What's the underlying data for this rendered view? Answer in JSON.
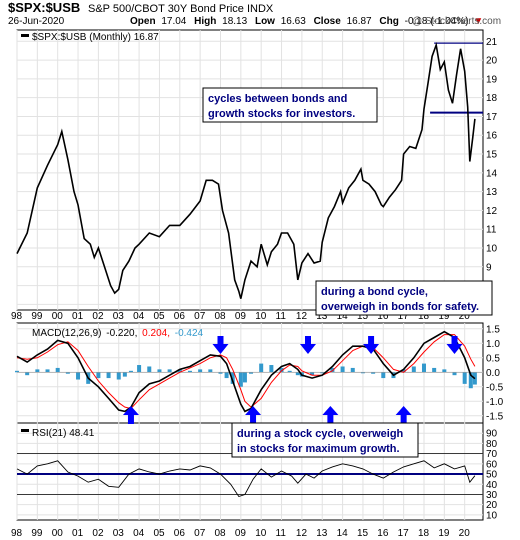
{
  "header": {
    "symbol": "$SPX:$USB",
    "description": "S&P 500/CBOT 30Y Bond Price INDX",
    "date": "26-Jun-2020",
    "open_label": "Open",
    "open": "17.04",
    "high_label": "High",
    "high": "18.13",
    "low_label": "Low",
    "low": "16.63",
    "close_label": "Close",
    "close": "16.87",
    "chg_label": "Chg",
    "chg": "-0.18 (-1.04%)",
    "chg_arrow": "▼",
    "watermark": "@ StockCharts.com"
  },
  "main_legend": "$SPX:$USB (Monthly) 16.87",
  "macd_legend": {
    "label": "MACD(12,26,9)",
    "macd": "-0.220,",
    "signal": "0.204,",
    "hist": "-0.424"
  },
  "rsi_legend": "RSI(21) 48.41",
  "annotations": [
    {
      "lines": [
        "cycles between bonds and",
        "growth stocks for investors."
      ]
    },
    {
      "lines": [
        "during a bond cycle,",
        "overweigh in bonds for safety."
      ]
    },
    {
      "lines": [
        "during a stock cycle, overweigh",
        "in stocks for maximum growth."
      ]
    }
  ],
  "x_tick_labels": [
    "98",
    "99",
    "00",
    "01",
    "02",
    "03",
    "04",
    "05",
    "06",
    "07",
    "08",
    "09",
    "10",
    "11",
    "12",
    "13",
    "14",
    "15",
    "16",
    "17",
    "18",
    "19",
    "20"
  ],
  "colors": {
    "price": "#000000",
    "macd": "#000000",
    "signal": "#ff0000",
    "histogram": "#3399cc",
    "arrow": "#0000ff",
    "level_line": "#000080",
    "annotation_text": "#000080",
    "down": "#cc0000",
    "signal_value": "#ff0000",
    "hist_value": "#3399cc"
  },
  "chart_data": [
    {
      "type": "line",
      "name": "price",
      "title": "$SPX:$USB (Monthly) 16.87",
      "ylim": [
        6.7,
        21.6
      ],
      "y_ticks": [
        7,
        8,
        9,
        10,
        11,
        12,
        13,
        14,
        15,
        16,
        17,
        18,
        19,
        20,
        21
      ],
      "x": [
        1998.0,
        1998.5,
        1999.0,
        1999.5,
        2000.0,
        2000.2,
        2000.5,
        2000.8,
        2001.0,
        2001.3,
        2001.6,
        2001.8,
        2002.0,
        2002.3,
        2002.6,
        2002.8,
        2003.0,
        2003.2,
        2003.5,
        2003.8,
        2004.0,
        2004.5,
        2005.0,
        2005.5,
        2006.0,
        2006.5,
        2007.0,
        2007.3,
        2007.6,
        2007.9,
        2008.1,
        2008.4,
        2008.7,
        2008.9,
        2009.0,
        2009.2,
        2009.5,
        2009.8,
        2010.0,
        2010.3,
        2010.5,
        2010.8,
        2011.0,
        2011.3,
        2011.6,
        2011.8,
        2012.0,
        2012.3,
        2012.6,
        2012.9,
        2013.0,
        2013.3,
        2013.6,
        2013.9,
        2014.0,
        2014.3,
        2014.6,
        2014.9,
        2015.0,
        2015.3,
        2015.6,
        2015.9,
        2016.0,
        2016.3,
        2016.6,
        2016.9,
        2017.0,
        2017.3,
        2017.6,
        2017.9,
        2018.0,
        2018.2,
        2018.4,
        2018.6,
        2018.8,
        2019.0,
        2019.2,
        2019.4,
        2019.6,
        2019.8,
        2020.0,
        2020.15,
        2020.25,
        2020.4,
        2020.5
      ],
      "values": [
        9.7,
        10.8,
        13.2,
        14.4,
        15.5,
        16.2,
        14.7,
        13.0,
        12.3,
        10.5,
        10.2,
        9.5,
        10.0,
        9.0,
        8.0,
        7.6,
        7.8,
        8.8,
        9.3,
        10.0,
        10.2,
        10.8,
        10.6,
        11.2,
        11.2,
        11.8,
        12.5,
        13.6,
        13.6,
        13.4,
        12.0,
        10.8,
        8.3,
        7.7,
        7.3,
        8.3,
        9.3,
        9.0,
        10.2,
        9.1,
        9.8,
        10.2,
        10.8,
        10.8,
        10.2,
        8.3,
        9.2,
        9.7,
        9.2,
        9.3,
        10.3,
        11.6,
        12.2,
        13.0,
        12.4,
        13.2,
        13.6,
        14.2,
        13.6,
        13.4,
        13.0,
        12.3,
        12.2,
        12.7,
        13.1,
        13.6,
        15.0,
        15.4,
        15.3,
        16.3,
        17.4,
        18.8,
        20.2,
        20.8,
        19.5,
        19.9,
        18.4,
        17.7,
        19.2,
        20.6,
        19.4,
        17.5,
        14.6,
        15.9,
        16.87
      ],
      "reference_lines": [
        17.2,
        20.9
      ]
    },
    {
      "type": "line",
      "name": "MACD(12,26,9)",
      "ylim": [
        -1.75,
        1.7
      ],
      "y_ticks": [
        -1.5,
        -1.0,
        -0.5,
        0.0,
        0.5,
        1.0,
        1.5
      ],
      "series": [
        {
          "name": "MACD",
          "x": [
            1998.0,
            1998.5,
            1999.0,
            1999.5,
            2000.0,
            2000.5,
            2001.0,
            2001.5,
            2002.0,
            2002.5,
            2003.0,
            2003.3,
            2003.6,
            2004.0,
            2004.5,
            2005.0,
            2005.5,
            2006.0,
            2006.5,
            2007.0,
            2007.5,
            2008.0,
            2008.3,
            2008.6,
            2009.0,
            2009.2,
            2009.5,
            2010.0,
            2010.5,
            2011.0,
            2011.4,
            2011.8,
            2012.0,
            2012.5,
            2013.0,
            2013.5,
            2014.0,
            2014.5,
            2015.0,
            2015.5,
            2016.0,
            2016.5,
            2017.0,
            2017.5,
            2018.0,
            2018.5,
            2019.0,
            2019.5,
            2020.0,
            2020.3,
            2020.5
          ],
          "values": [
            0.55,
            0.35,
            0.6,
            0.8,
            1.1,
            1.0,
            0.5,
            -0.2,
            -0.5,
            -0.9,
            -1.3,
            -1.35,
            -1.2,
            -0.7,
            -0.4,
            -0.3,
            -0.1,
            0.1,
            0.2,
            0.4,
            0.6,
            0.55,
            0.3,
            -0.3,
            -1.1,
            -1.35,
            -1.25,
            -0.6,
            -0.1,
            0.2,
            0.3,
            0.1,
            -0.1,
            -0.2,
            -0.1,
            0.2,
            0.6,
            0.9,
            0.9,
            0.8,
            0.3,
            -0.1,
            0.1,
            0.5,
            1.0,
            1.2,
            1.4,
            1.2,
            0.5,
            -0.1,
            -0.22
          ]
        },
        {
          "name": "Signal",
          "x": [
            1998.0,
            1998.5,
            1999.0,
            1999.5,
            2000.0,
            2000.5,
            2001.0,
            2001.5,
            2002.0,
            2002.5,
            2003.0,
            2003.3,
            2003.6,
            2004.0,
            2004.5,
            2005.0,
            2005.5,
            2006.0,
            2006.5,
            2007.0,
            2007.5,
            2008.0,
            2008.3,
            2008.6,
            2009.0,
            2009.2,
            2009.5,
            2010.0,
            2010.5,
            2011.0,
            2011.4,
            2011.8,
            2012.0,
            2012.5,
            2013.0,
            2013.5,
            2014.0,
            2014.5,
            2015.0,
            2015.5,
            2016.0,
            2016.5,
            2017.0,
            2017.5,
            2018.0,
            2018.5,
            2019.0,
            2019.5,
            2020.0,
            2020.3,
            2020.5
          ],
          "values": [
            0.5,
            0.45,
            0.5,
            0.7,
            0.95,
            1.05,
            0.75,
            0.2,
            -0.3,
            -0.7,
            -1.05,
            -1.2,
            -1.25,
            -0.95,
            -0.6,
            -0.4,
            -0.2,
            0.0,
            0.15,
            0.3,
            0.5,
            0.6,
            0.5,
            0.1,
            -0.6,
            -1.0,
            -1.2,
            -0.9,
            -0.35,
            0.05,
            0.25,
            0.2,
            0.05,
            -0.1,
            -0.1,
            0.05,
            0.4,
            0.75,
            0.9,
            0.85,
            0.5,
            0.1,
            0.0,
            0.3,
            0.7,
            1.05,
            1.3,
            1.3,
            0.9,
            0.45,
            0.204
          ]
        },
        {
          "name": "Histogram",
          "x": [
            1998.0,
            1998.5,
            1999.0,
            1999.5,
            2000.0,
            2000.5,
            2001.0,
            2001.5,
            2002.0,
            2002.5,
            2003.0,
            2003.3,
            2003.6,
            2004.0,
            2004.5,
            2005.0,
            2005.5,
            2006.0,
            2006.5,
            2007.0,
            2007.5,
            2008.0,
            2008.3,
            2008.6,
            2009.0,
            2009.2,
            2009.5,
            2010.0,
            2010.5,
            2011.0,
            2011.4,
            2011.8,
            2012.0,
            2012.5,
            2013.0,
            2013.5,
            2014.0,
            2014.5,
            2015.0,
            2015.5,
            2016.0,
            2016.5,
            2017.0,
            2017.5,
            2018.0,
            2018.5,
            2019.0,
            2019.5,
            2020.0,
            2020.3,
            2020.5
          ],
          "values": [
            0.05,
            -0.1,
            0.1,
            0.1,
            0.15,
            -0.05,
            -0.25,
            -0.4,
            -0.2,
            -0.2,
            -0.25,
            -0.15,
            0.05,
            0.25,
            0.2,
            0.1,
            0.1,
            0.1,
            0.05,
            0.1,
            0.1,
            -0.05,
            -0.2,
            -0.4,
            -0.5,
            -0.35,
            -0.05,
            0.3,
            0.25,
            0.15,
            0.05,
            -0.1,
            -0.15,
            -0.1,
            0.0,
            0.15,
            0.2,
            0.15,
            0.0,
            -0.05,
            -0.2,
            -0.2,
            0.1,
            0.2,
            0.3,
            0.15,
            0.1,
            -0.1,
            -0.4,
            -0.55,
            -0.424
          ]
        }
      ],
      "markers": [
        {
          "x": 2003.6,
          "direction": "up"
        },
        {
          "x": 2008.0,
          "direction": "down"
        },
        {
          "x": 2009.6,
          "direction": "up"
        },
        {
          "x": 2012.3,
          "direction": "down"
        },
        {
          "x": 2013.4,
          "direction": "up"
        },
        {
          "x": 2015.4,
          "direction": "down"
        },
        {
          "x": 2017.0,
          "direction": "up"
        },
        {
          "x": 2019.5,
          "direction": "down"
        }
      ]
    },
    {
      "type": "line",
      "name": "RSI(21)",
      "ylim": [
        5,
        100
      ],
      "y_ticks": [
        10,
        20,
        30,
        40,
        50,
        60,
        70,
        80,
        90
      ],
      "reference_lines": [
        30,
        50,
        70
      ],
      "x": [
        1998.0,
        1998.5,
        1999.0,
        1999.5,
        2000.0,
        2000.5,
        2001.0,
        2001.5,
        2002.0,
        2002.5,
        2003.0,
        2003.5,
        2004.0,
        2004.5,
        2005.0,
        2005.5,
        2006.0,
        2006.5,
        2007.0,
        2007.5,
        2008.0,
        2008.5,
        2008.9,
        2009.2,
        2009.6,
        2010.0,
        2010.5,
        2011.0,
        2011.5,
        2011.8,
        2012.2,
        2012.6,
        2013.0,
        2013.5,
        2014.0,
        2014.5,
        2015.0,
        2015.5,
        2016.0,
        2016.5,
        2017.0,
        2017.5,
        2018.0,
        2018.5,
        2019.0,
        2019.5,
        2020.0,
        2020.25,
        2020.5
      ],
      "values": [
        55,
        50,
        58,
        60,
        63,
        52,
        48,
        42,
        45,
        38,
        37,
        50,
        55,
        52,
        50,
        53,
        55,
        54,
        58,
        56,
        50,
        40,
        28,
        30,
        45,
        55,
        47,
        53,
        48,
        41,
        50,
        46,
        53,
        57,
        60,
        58,
        55,
        50,
        46,
        52,
        57,
        60,
        63,
        56,
        60,
        55,
        58,
        42,
        48.41
      ]
    }
  ]
}
